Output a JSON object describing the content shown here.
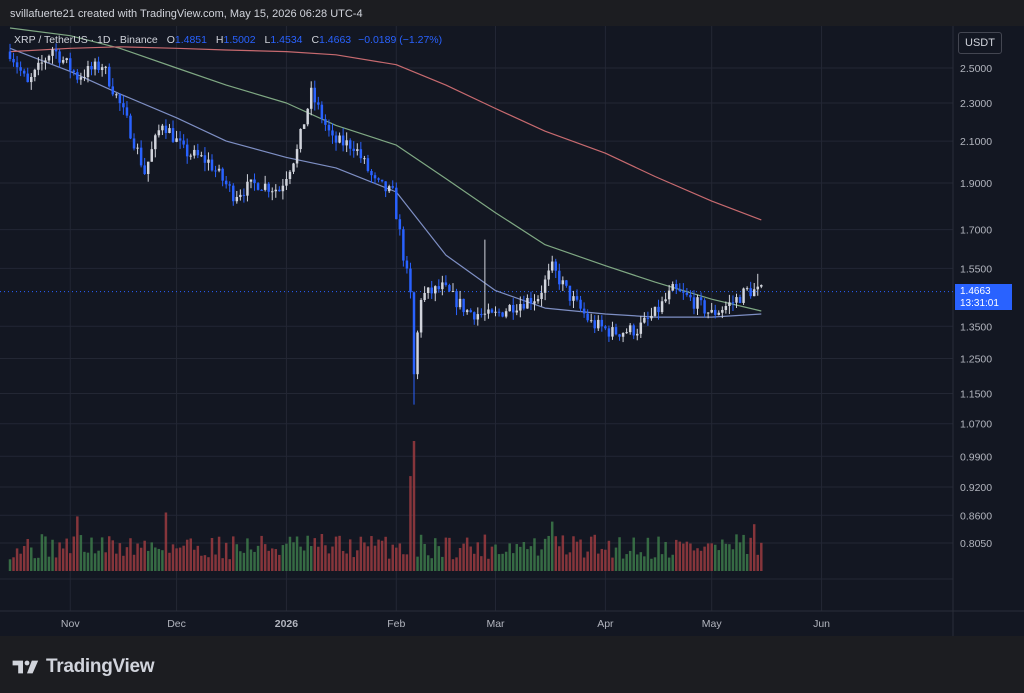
{
  "caption": "svillafuerte21 created with TradingView.com, May 15, 2026 06:28 UTC-4",
  "legend": {
    "symbol": "XRP / TetherUS · 1D · Binance",
    "open_label": "O",
    "open": "1.4851",
    "high_label": "H",
    "high": "1.5002",
    "low_label": "L",
    "low": "1.4534",
    "close_label": "C",
    "close": "1.4663",
    "change": "−0.0189 (−1.27%)"
  },
  "currency": "USDT",
  "price_tag": {
    "price": "1.4663",
    "countdown": "13:31:01"
  },
  "brand": "TradingView",
  "colors": {
    "background": "#131722",
    "up": "#d1d4dc",
    "down": "#2962ff",
    "ma_short": "#7e8fc4",
    "ma_mid": "#7fa883",
    "ma_long": "#c76a6f",
    "volume_up": "#3d7a4a",
    "volume_down": "#9b3b3f"
  },
  "chart_data": {
    "type": "candlestick",
    "y_axis": {
      "scale": "log",
      "ticks": [
        "2.5000",
        "2.3000",
        "2.1000",
        "1.9000",
        "1.7000",
        "1.5500",
        "1.3500",
        "1.2500",
        "1.1500",
        "1.0700",
        "0.9900",
        "0.9200",
        "0.8600",
        "0.8050"
      ]
    },
    "x_axis": {
      "ticks": [
        "Nov",
        "Dec",
        "2026",
        "Feb",
        "Mar",
        "Apr",
        "May",
        "Jun"
      ]
    },
    "candles_approx": {
      "start": "2025-10-15",
      "end": "2026-05-15",
      "path_dates": [
        "2025-10-15",
        "2025-10-20",
        "2025-10-27",
        "2025-11-03",
        "2025-11-10",
        "2025-11-17",
        "2025-11-22",
        "2025-11-27",
        "2025-12-03",
        "2025-12-10",
        "2025-12-17",
        "2025-12-24",
        "2025-12-30",
        "2026-01-04",
        "2026-01-08",
        "2026-01-14",
        "2026-01-20",
        "2026-01-26",
        "2026-01-31",
        "2026-02-03",
        "2026-02-05",
        "2026-02-06",
        "2026-02-08",
        "2026-02-14",
        "2026-02-21",
        "2026-02-28",
        "2026-03-06",
        "2026-03-13",
        "2026-03-17",
        "2026-03-22",
        "2026-03-28",
        "2026-04-03",
        "2026-04-10",
        "2026-04-15",
        "2026-04-20",
        "2026-04-25",
        "2026-05-01",
        "2026-05-07",
        "2026-05-11",
        "2026-05-15"
      ],
      "path_closes": [
        2.6,
        2.4,
        2.62,
        2.45,
        2.52,
        2.2,
        1.95,
        2.2,
        2.05,
        2.0,
        1.85,
        1.9,
        1.87,
        2.05,
        2.35,
        2.1,
        2.08,
        1.9,
        1.85,
        1.6,
        1.45,
        1.2,
        1.45,
        1.48,
        1.4,
        1.38,
        1.42,
        1.45,
        1.55,
        1.45,
        1.36,
        1.33,
        1.34,
        1.39,
        1.47,
        1.44,
        1.39,
        1.43,
        1.47,
        1.4663
      ]
    },
    "moving_averages": [
      {
        "color": "#7e8fc4",
        "dates": [
          "2025-10-15",
          "2025-11-01",
          "2025-11-15",
          "2025-12-01",
          "2025-12-15",
          "2026-01-01",
          "2026-01-15",
          "2026-02-01",
          "2026-02-15",
          "2026-03-01",
          "2026-03-15",
          "2026-04-01",
          "2026-04-15",
          "2026-05-01",
          "2026-05-15"
        ],
        "values": [
          2.62,
          2.48,
          2.35,
          2.22,
          2.1,
          2.02,
          1.97,
          1.86,
          1.6,
          1.47,
          1.41,
          1.39,
          1.38,
          1.38,
          1.39
        ]
      },
      {
        "color": "#7fa883",
        "dates": [
          "2025-10-15",
          "2025-11-01",
          "2025-11-15",
          "2025-12-01",
          "2025-12-15",
          "2026-01-01",
          "2026-01-15",
          "2026-02-01",
          "2026-02-15",
          "2026-03-01",
          "2026-03-15",
          "2026-04-01",
          "2026-04-15",
          "2026-05-01",
          "2026-05-15"
        ],
        "values": [
          2.75,
          2.7,
          2.62,
          2.5,
          2.4,
          2.3,
          2.18,
          2.08,
          1.92,
          1.77,
          1.64,
          1.56,
          1.5,
          1.44,
          1.4
        ]
      },
      {
        "color": "#c76a6f",
        "dates": [
          "2025-10-15",
          "2025-11-01",
          "2025-11-15",
          "2025-12-01",
          "2025-12-15",
          "2026-01-01",
          "2026-01-15",
          "2026-02-01",
          "2026-02-15",
          "2026-03-01",
          "2026-03-15",
          "2026-04-01",
          "2026-04-15",
          "2026-05-01",
          "2026-05-15"
        ],
        "values": [
          2.6,
          2.62,
          2.63,
          2.62,
          2.61,
          2.6,
          2.58,
          2.52,
          2.4,
          2.27,
          2.15,
          2.04,
          1.93,
          1.82,
          1.74
        ]
      }
    ],
    "volume": {
      "notes": "spikes near 2026-02-05 and 2026-02-06",
      "spike_dates": [
        "2025-11-03",
        "2025-11-28",
        "2026-02-05",
        "2026-02-06",
        "2026-03-17",
        "2026-05-13"
      ],
      "spike_levels": [
        0.42,
        0.45,
        0.73,
        1.0,
        0.38,
        0.36
      ],
      "baseline_level": 0.18
    }
  }
}
